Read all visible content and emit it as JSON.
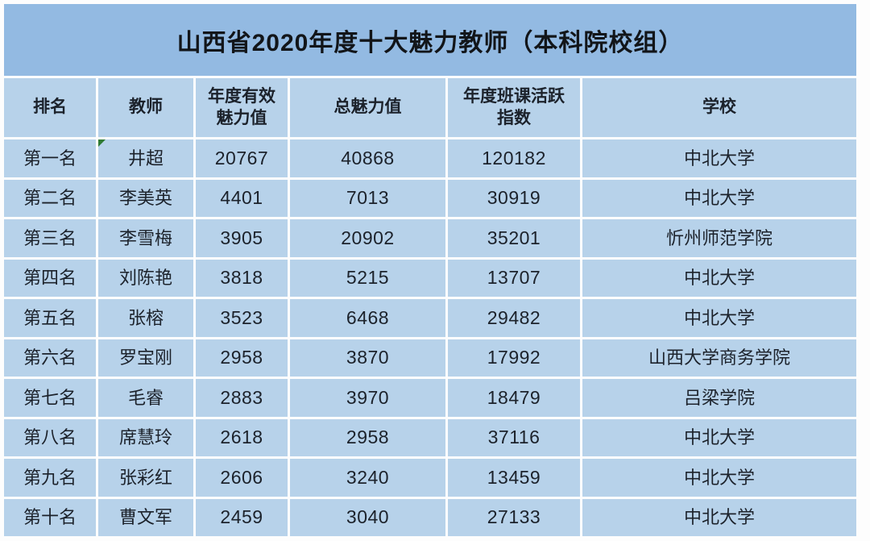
{
  "title": "山西省2020年度十大魅力教师（本科院校组）",
  "table": {
    "columns": [
      "排名",
      "教师",
      "年度有效\n魅力值",
      "总魅力值",
      "年度班课活跃\n指数",
      "学校"
    ],
    "rows": [
      {
        "rank": "第一名",
        "teacher": "井超",
        "annual_effective_charm": "20767",
        "total_charm": "40868",
        "activity_index": "120182",
        "school": "中北大学"
      },
      {
        "rank": "第二名",
        "teacher": "李美英",
        "annual_effective_charm": "4401",
        "total_charm": "7013",
        "activity_index": "30919",
        "school": "中北大学"
      },
      {
        "rank": "第三名",
        "teacher": "李雪梅",
        "annual_effective_charm": "3905",
        "total_charm": "20902",
        "activity_index": "35201",
        "school": "忻州师范学院"
      },
      {
        "rank": "第四名",
        "teacher": "刘陈艳",
        "annual_effective_charm": "3818",
        "total_charm": "5215",
        "activity_index": "13707",
        "school": "中北大学"
      },
      {
        "rank": "第五名",
        "teacher": "张榕",
        "annual_effective_charm": "3523",
        "total_charm": "6468",
        "activity_index": "29482",
        "school": "中北大学"
      },
      {
        "rank": "第六名",
        "teacher": "罗宝刚",
        "annual_effective_charm": "2958",
        "total_charm": "3870",
        "activity_index": "17992",
        "school": "山西大学商务学院"
      },
      {
        "rank": "第七名",
        "teacher": "毛睿",
        "annual_effective_charm": "2883",
        "total_charm": "3970",
        "activity_index": "18479",
        "school": "吕梁学院"
      },
      {
        "rank": "第八名",
        "teacher": "席慧玲",
        "annual_effective_charm": "2618",
        "total_charm": "2958",
        "activity_index": "37116",
        "school": "中北大学"
      },
      {
        "rank": "第九名",
        "teacher": "张彩红",
        "annual_effective_charm": "2606",
        "total_charm": "3240",
        "activity_index": "13459",
        "school": "中北大学"
      },
      {
        "rank": "第十名",
        "teacher": "曹文军",
        "annual_effective_charm": "2459",
        "total_charm": "3040",
        "activity_index": "27133",
        "school": "中北大学"
      }
    ]
  },
  "colors": {
    "title_bar": "#93bae2",
    "cell": "#b7d2ea",
    "text": "#1c222b",
    "title_text": "#121519",
    "marker_green": "#2f7a33"
  },
  "chart_data": {
    "type": "table",
    "title": "山西省2020年度十大魅力教师（本科院校组）",
    "columns": [
      "排名",
      "教师",
      "年度有效魅力值",
      "总魅力值",
      "年度班课活跃指数",
      "学校"
    ],
    "rows": [
      [
        "第一名",
        "井超",
        20767,
        40868,
        120182,
        "中北大学"
      ],
      [
        "第二名",
        "李美英",
        4401,
        7013,
        30919,
        "中北大学"
      ],
      [
        "第三名",
        "李雪梅",
        3905,
        20902,
        35201,
        "忻州师范学院"
      ],
      [
        "第四名",
        "刘陈艳",
        3818,
        5215,
        13707,
        "中北大学"
      ],
      [
        "第五名",
        "张榕",
        3523,
        6468,
        29482,
        "中北大学"
      ],
      [
        "第六名",
        "罗宝刚",
        2958,
        3870,
        17992,
        "山西大学商务学院"
      ],
      [
        "第七名",
        "毛睿",
        2883,
        3970,
        18479,
        "吕梁学院"
      ],
      [
        "第八名",
        "席慧玲",
        2618,
        2958,
        37116,
        "中北大学"
      ],
      [
        "第九名",
        "张彩红",
        2606,
        3240,
        13459,
        "中北大学"
      ],
      [
        "第十名",
        "曹文军",
        2459,
        3040,
        27133,
        "中北大学"
      ]
    ]
  }
}
